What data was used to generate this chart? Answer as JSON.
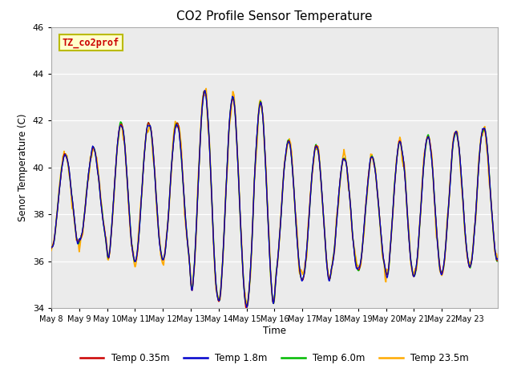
{
  "title": "CO2 Profile Sensor Temperature",
  "ylabel": "Senor Temperature (C)",
  "xlabel": "Time",
  "ylim": [
    34,
    46
  ],
  "yticks": [
    34,
    36,
    38,
    40,
    42,
    44,
    46
  ],
  "xtick_labels": [
    "May 8",
    "May 9",
    "May 10",
    "May 11",
    "May 12",
    "May 13",
    "May 14",
    "May 15",
    "May 16",
    "May 17",
    "May 18",
    "May 19",
    "May 20",
    "May 21",
    "May 22",
    "May 23"
  ],
  "colors": {
    "Temp 0.35m": "#cc0000",
    "Temp 1.8m": "#0000cc",
    "Temp 6.0m": "#00bb00",
    "Temp 23.5m": "#ffaa00"
  },
  "bg_color": "#ebebeb",
  "annotation_text": "TZ_co2prof",
  "annotation_color": "#cc0000",
  "annotation_bg": "#ffffcc",
  "annotation_border": "#bbbb00"
}
